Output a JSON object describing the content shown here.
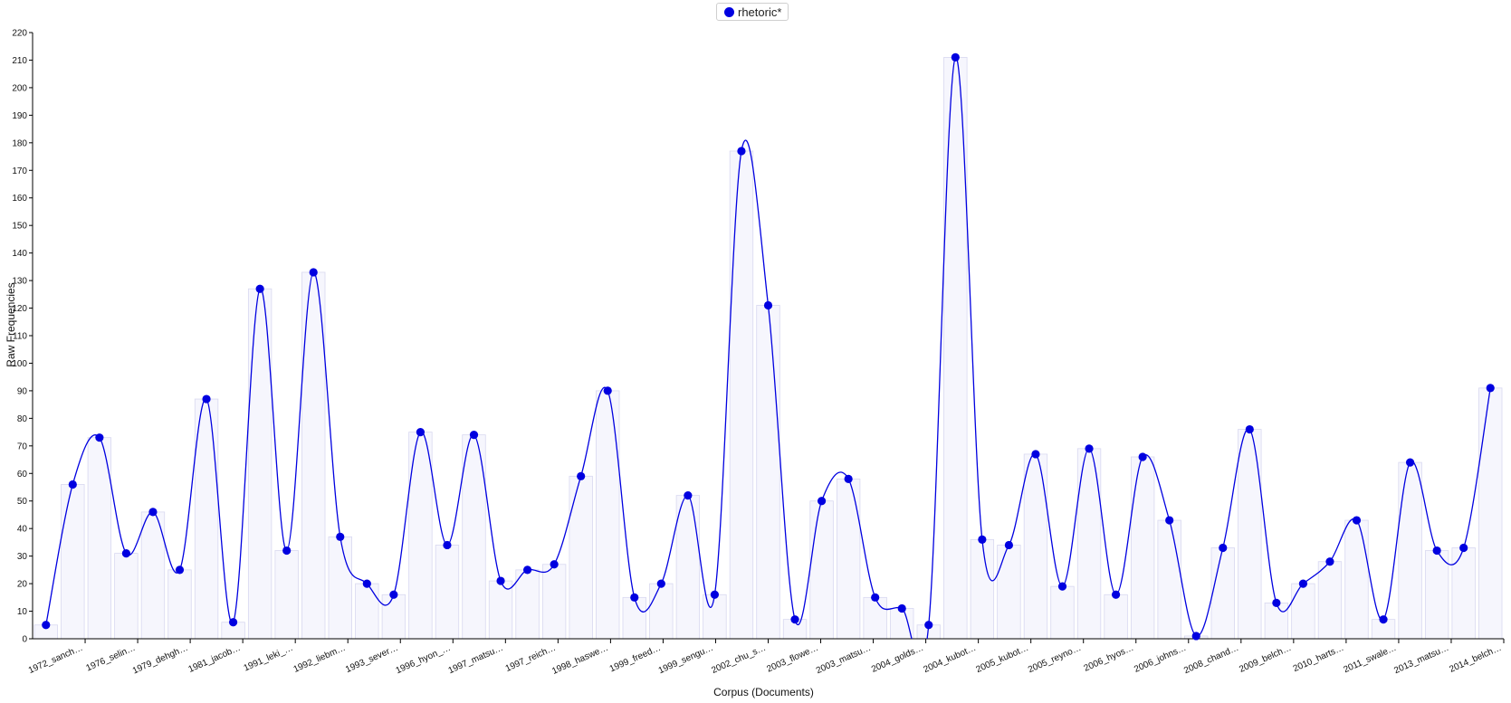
{
  "chart_data": {
    "type": "line",
    "title": "",
    "xlabel": "Corpus (Documents)",
    "ylabel": "Raw Frequencies",
    "ylim": [
      0,
      220
    ],
    "y_ticks": [
      0,
      10,
      20,
      30,
      40,
      50,
      60,
      70,
      80,
      90,
      100,
      110,
      120,
      130,
      140,
      150,
      160,
      170,
      180,
      190,
      200,
      210,
      220
    ],
    "grid": false,
    "legend_position": "top-center",
    "line_style": "smoothed curve with markers, translucent bars behind points",
    "series_color": "#0000e0",
    "x_tick_labels": [
      "1972_sanch…",
      "1976_selin…",
      "1979_dehgh…",
      "1981_jacob…",
      "1991_leki_…",
      "1992_liebm…",
      "1993_sever…",
      "1996_hyon_…",
      "1997_matsu…",
      "1997_reich…",
      "1998_haswe…",
      "1999_freed…",
      "1999_sengu…",
      "2002_chu_s…",
      "2003_flowe…",
      "2003_matsu…",
      "2004_golds…",
      "2004_kubot…",
      "2005_kubot…",
      "2005_reyno…",
      "2006_hyos…",
      "2006_johns…",
      "2008_chand…",
      "2009_belch…",
      "2010_harts…",
      "2011_swale…",
      "2013_matsu…",
      "2014_belch…"
    ],
    "series": [
      {
        "name": "rhetoric*",
        "values": [
          5,
          56,
          73,
          31,
          46,
          25,
          87,
          6,
          127,
          32,
          133,
          37,
          20,
          16,
          75,
          34,
          74,
          21,
          25,
          27,
          59,
          90,
          15,
          20,
          52,
          16,
          177,
          121,
          7,
          50,
          58,
          15,
          11,
          5,
          211,
          36,
          34,
          67,
          19,
          69,
          16,
          66,
          43,
          1,
          33,
          76,
          13,
          20,
          28,
          43,
          7,
          64,
          32,
          33,
          91
        ]
      }
    ]
  }
}
